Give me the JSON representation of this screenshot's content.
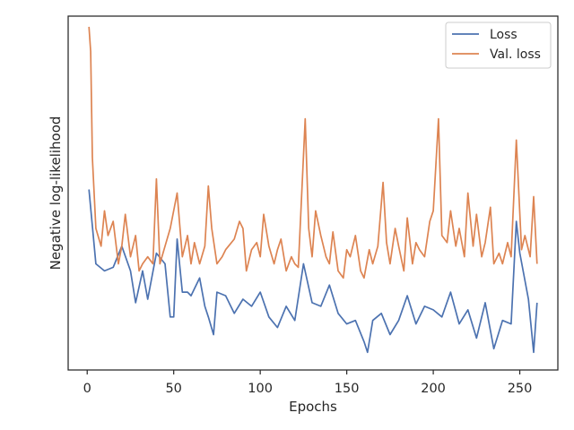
{
  "chart_data": {
    "type": "line",
    "xlabel": "Epochs",
    "ylabel": "Negative log-likelihood",
    "xlim": [
      -11,
      272
    ],
    "ylim": [
      0,
      100
    ],
    "xticks": [
      0,
      50,
      100,
      150,
      200,
      250
    ],
    "yticks": [],
    "grid": false,
    "legend_position": "top-right",
    "colors": {
      "loss": "#4c72b0",
      "val_loss": "#dd8452",
      "frame": "#262626"
    },
    "series": [
      {
        "name": "Loss",
        "color": "#4c72b0",
        "x": [
          1,
          5,
          10,
          15,
          20,
          25,
          28,
          32,
          35,
          40,
          45,
          48,
          50,
          52,
          55,
          58,
          60,
          65,
          68,
          70,
          73,
          75,
          80,
          85,
          90,
          95,
          100,
          105,
          110,
          115,
          120,
          125,
          130,
          135,
          140,
          145,
          150,
          155,
          160,
          162,
          165,
          170,
          175,
          180,
          185,
          190,
          195,
          200,
          205,
          210,
          215,
          220,
          225,
          230,
          235,
          240,
          245,
          248,
          250,
          255,
          258,
          260
        ],
        "y": [
          51,
          30,
          28,
          29,
          35,
          28,
          19,
          28,
          20,
          33,
          30,
          15,
          15,
          37,
          22,
          22,
          21,
          26,
          18,
          15,
          10,
          22,
          21,
          16,
          20,
          18,
          22,
          15,
          12,
          18,
          14,
          30,
          19,
          18,
          24,
          16,
          13,
          14,
          8,
          5,
          14,
          16,
          10,
          14,
          21,
          13,
          18,
          17,
          15,
          22,
          13,
          17,
          9,
          19,
          6,
          14,
          13,
          42,
          33,
          20,
          5,
          19
        ]
      },
      {
        "name": "Val. loss",
        "color": "#dd8452",
        "x": [
          1,
          2,
          3,
          5,
          8,
          10,
          12,
          15,
          18,
          20,
          22,
          25,
          28,
          30,
          32,
          35,
          38,
          40,
          42,
          45,
          48,
          52,
          55,
          58,
          60,
          62,
          65,
          68,
          70,
          72,
          75,
          78,
          80,
          85,
          88,
          90,
          92,
          95,
          98,
          100,
          102,
          105,
          108,
          110,
          112,
          115,
          118,
          120,
          122,
          126,
          128,
          130,
          132,
          135,
          138,
          140,
          142,
          145,
          148,
          150,
          152,
          155,
          158,
          160,
          163,
          165,
          168,
          171,
          173,
          175,
          178,
          180,
          183,
          185,
          188,
          190,
          192,
          195,
          198,
          200,
          203,
          205,
          208,
          210,
          213,
          215,
          218,
          220,
          223,
          225,
          228,
          230,
          233,
          235,
          238,
          240,
          243,
          245,
          248,
          251,
          253,
          256,
          258,
          260
        ],
        "y": [
          97,
          90,
          60,
          40,
          35,
          45,
          38,
          42,
          30,
          35,
          44,
          32,
          38,
          28,
          30,
          32,
          30,
          54,
          30,
          35,
          40,
          50,
          32,
          38,
          30,
          36,
          30,
          35,
          52,
          40,
          30,
          32,
          34,
          37,
          42,
          40,
          28,
          34,
          36,
          32,
          44,
          35,
          30,
          34,
          37,
          28,
          32,
          30,
          29,
          71,
          40,
          32,
          45,
          38,
          32,
          30,
          39,
          28,
          26,
          34,
          32,
          38,
          28,
          26,
          34,
          30,
          35,
          53,
          36,
          30,
          40,
          35,
          28,
          43,
          30,
          36,
          34,
          32,
          42,
          45,
          71,
          38,
          36,
          45,
          35,
          40,
          32,
          50,
          35,
          44,
          32,
          36,
          46,
          30,
          33,
          30,
          36,
          32,
          65,
          34,
          38,
          32,
          49,
          30
        ]
      }
    ]
  }
}
